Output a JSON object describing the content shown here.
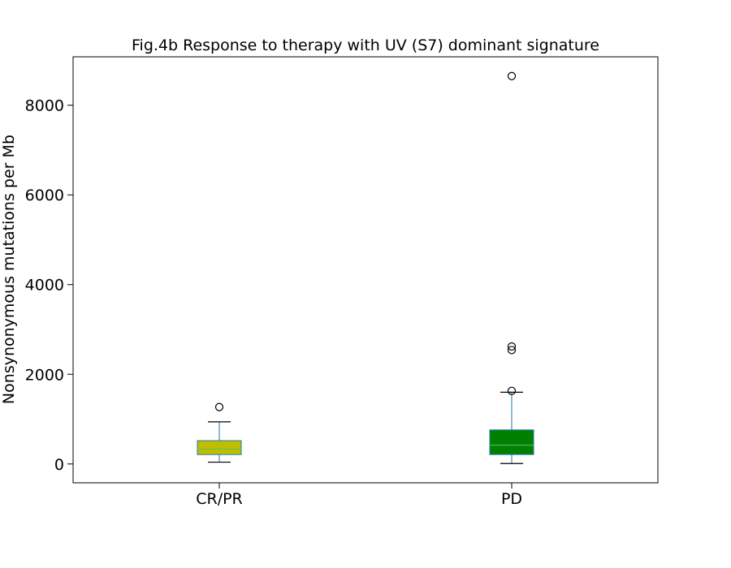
{
  "chart_data": {
    "type": "box",
    "title": "Fig.4b Response to therapy with UV (S7) dominant signature",
    "xlabel": "",
    "ylabel": "Nonsynonymous mutations per Mb",
    "ylim": [
      -420,
      9080
    ],
    "yticks": [
      0,
      2000,
      4000,
      6000,
      8000
    ],
    "yticks_labels": [
      "0",
      "2000",
      "4000",
      "6000",
      "8000"
    ],
    "categories": [
      "CR/PR",
      "PD"
    ],
    "grid": false,
    "boxes": [
      {
        "category": "CR/PR",
        "whisker_low": 40,
        "q1": 210,
        "median": 330,
        "q3": 520,
        "whisker_high": 940,
        "outliers": [
          1270
        ],
        "fill_color": "#bfbf00",
        "median_color": "#7fbf3f"
      },
      {
        "category": "PD",
        "whisker_low": 10,
        "q1": 210,
        "median": 420,
        "q3": 760,
        "whisker_high": 1600,
        "outliers": [
          1630,
          2540,
          2620,
          8650
        ],
        "fill_color": "#008000",
        "median_color": "#4aa84a"
      }
    ],
    "colors": {
      "box_edge": "#1f77b4",
      "whisker": "#1f77b4",
      "cap": "#000000",
      "outlier_edge": "#000000"
    }
  }
}
